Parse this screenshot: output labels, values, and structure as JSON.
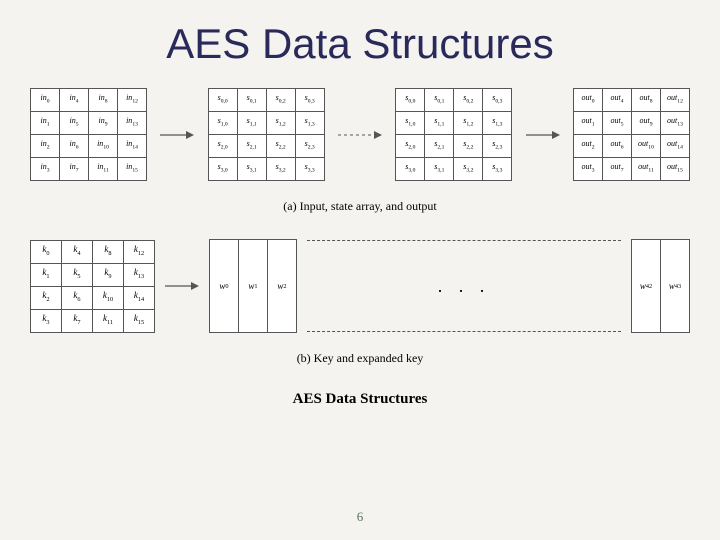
{
  "title": "AES Data Structures",
  "page_number": "6",
  "caption_a": "(a) Input, state array, and output",
  "caption_b": "(b) Key and expanded key",
  "figure_title": "AES Data Structures",
  "colors": {
    "bg": "#f5f3f0",
    "title": "#2a2a5a",
    "border": "#555555",
    "text": "#000000",
    "pagenum": "#5a7060"
  },
  "input_grid": [
    [
      "in₀",
      "in₄",
      "in₈",
      "in₁₂"
    ],
    [
      "in₁",
      "in₅",
      "in₉",
      "in₁₃"
    ],
    [
      "in₂",
      "in₆",
      "in₁₀",
      "in₁₄"
    ],
    [
      "in₃",
      "in₇",
      "in₁₁",
      "in₁₅"
    ]
  ],
  "state_grid": [
    [
      "s₀,₀",
      "s₀,₁",
      "s₀,₂",
      "s₀,₃"
    ],
    [
      "s₁,₀",
      "s₁,₁",
      "s₁,₂",
      "s₁,₃"
    ],
    [
      "s₂,₀",
      "s₂,₁",
      "s₂,₂",
      "s₂,₃"
    ],
    [
      "s₃,₀",
      "s₃,₁",
      "s₃,₂",
      "s₃,₃"
    ]
  ],
  "output_grid": [
    [
      "out₀",
      "out₄",
      "out₈",
      "out₁₂"
    ],
    [
      "out₁",
      "out₅",
      "out₉",
      "out₁₃"
    ],
    [
      "out₂",
      "out₆",
      "out₁₀",
      "out₁₄"
    ],
    [
      "out₃",
      "out₇",
      "out₁₁",
      "out₁₅"
    ]
  ],
  "key_grid": [
    [
      "k₀",
      "k₄",
      "k₈",
      "k₁₂"
    ],
    [
      "k₁",
      "k₅",
      "k₉",
      "k₁₃"
    ],
    [
      "k₂",
      "k₆",
      "k₁₀",
      "k₁₄"
    ],
    [
      "k₃",
      "k₇",
      "k₁₁",
      "k₁₅"
    ]
  ],
  "words_left": [
    "w₀",
    "w₁",
    "w₂"
  ],
  "words_right": [
    "w₄₂",
    "w₄₃"
  ],
  "ellipsis": ". . ."
}
